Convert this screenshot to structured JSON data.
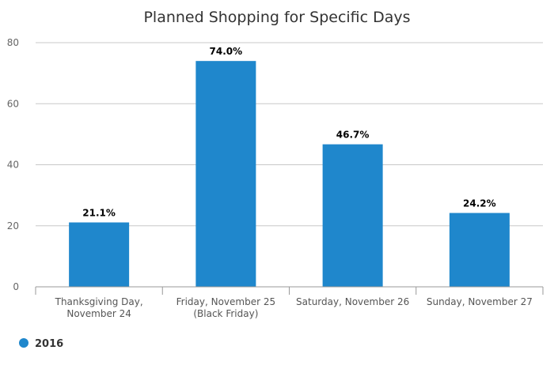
{
  "chart_data": {
    "type": "bar",
    "title": "Planned Shopping for Specific Days",
    "categories": [
      [
        "Thanksgiving Day,",
        "November 24"
      ],
      [
        "Friday, November 25",
        "(Black Friday)"
      ],
      [
        "Saturday, November 26"
      ],
      [
        "Sunday, November 27"
      ]
    ],
    "series": [
      {
        "name": "2016",
        "color": "#1f87cc",
        "values": [
          21.1,
          74.0,
          46.7,
          24.2
        ],
        "labels": [
          "21.1%",
          "74.0%",
          "46.7%",
          "24.2%"
        ]
      }
    ],
    "yticks": [
      "0",
      "20",
      "40",
      "60",
      "80"
    ],
    "ylim": [
      0,
      80
    ],
    "grid": true,
    "legend": "bottom-left"
  }
}
